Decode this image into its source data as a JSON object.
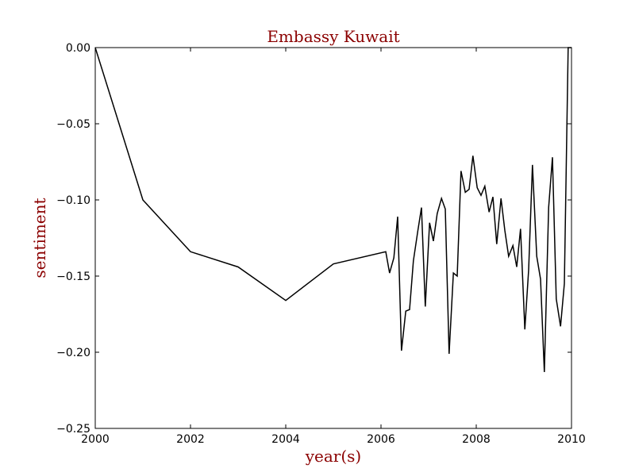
{
  "chart_data": {
    "type": "line",
    "title": "Embassy Kuwait",
    "xlabel": "year(s)",
    "ylabel": "sentiment",
    "xlim": [
      2000,
      2010
    ],
    "ylim": [
      -0.25,
      0.0
    ],
    "grid": false,
    "xticks": [
      2000,
      2002,
      2004,
      2006,
      2008,
      2010
    ],
    "xtick_labels": [
      "2000",
      "2002",
      "2004",
      "2006",
      "2008",
      "2010"
    ],
    "yticks": [
      0.0,
      -0.05,
      -0.1,
      -0.15,
      -0.2,
      -0.25
    ],
    "ytick_labels": [
      "0.00",
      "−0.05",
      "−0.10",
      "−0.15",
      "−0.20",
      "−0.25"
    ],
    "series": [
      {
        "color": "#000000",
        "x": [
          2000.0,
          2001.0,
          2002.0,
          2003.0,
          2004.0,
          2005.0,
          2006.1,
          2006.18,
          2006.27,
          2006.35,
          2006.43,
          2006.52,
          2006.6,
          2006.68,
          2006.77,
          2006.85,
          2006.93,
          2007.02,
          2007.1,
          2007.18,
          2007.27,
          2007.35,
          2007.43,
          2007.52,
          2007.6,
          2007.68,
          2007.77,
          2007.85,
          2007.93,
          2008.02,
          2008.1,
          2008.18,
          2008.27,
          2008.35,
          2008.43,
          2008.52,
          2008.6,
          2008.68,
          2008.77,
          2008.85,
          2008.93,
          2009.02,
          2009.1,
          2009.18,
          2009.27,
          2009.35,
          2009.43,
          2009.52,
          2009.6,
          2009.68,
          2009.77,
          2009.85,
          2009.93,
          2010.0
        ],
        "y": [
          0.0,
          -0.1,
          -0.134,
          -0.144,
          -0.166,
          -0.142,
          -0.134,
          -0.148,
          -0.138,
          -0.111,
          -0.199,
          -0.173,
          -0.172,
          -0.14,
          -0.121,
          -0.105,
          -0.17,
          -0.115,
          -0.127,
          -0.109,
          -0.099,
          -0.106,
          -0.201,
          -0.148,
          -0.15,
          -0.081,
          -0.095,
          -0.093,
          -0.071,
          -0.092,
          -0.097,
          -0.091,
          -0.108,
          -0.098,
          -0.129,
          -0.099,
          -0.12,
          -0.137,
          -0.13,
          -0.144,
          -0.119,
          -0.185,
          -0.146,
          -0.077,
          -0.137,
          -0.152,
          -0.213,
          -0.105,
          -0.072,
          -0.165,
          -0.183,
          -0.155,
          0.0,
          0.0
        ]
      }
    ]
  }
}
